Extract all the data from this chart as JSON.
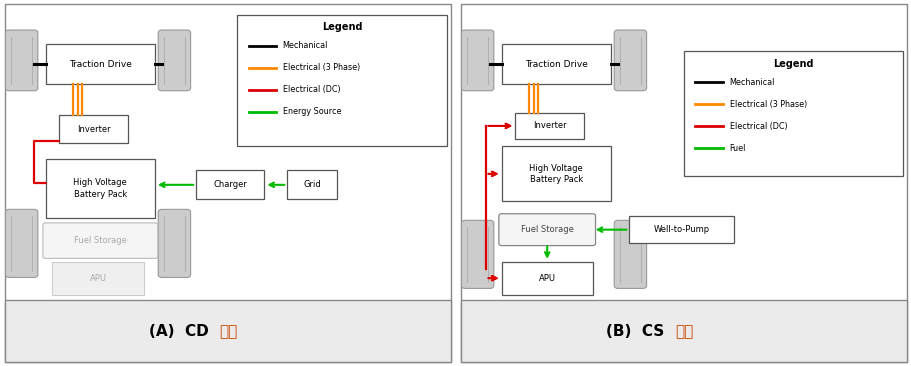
{
  "fig_width": 9.12,
  "fig_height": 3.66,
  "bg_color": "#ffffff",
  "legend_A_items": [
    {
      "label": "Mechanical",
      "color": "#000000",
      "lw": 2.0
    },
    {
      "label": "Electrical (3 Phase)",
      "color": "#ff8800",
      "lw": 2.0
    },
    {
      "label": "Electrical (DC)",
      "color": "#dd0000",
      "lw": 2.0
    },
    {
      "label": "Energy Source",
      "color": "#00bb00",
      "lw": 2.0
    }
  ],
  "legend_B_items": [
    {
      "label": "Mechanical",
      "color": "#000000",
      "lw": 2.0
    },
    {
      "label": "Electrical (3 Phase)",
      "color": "#ff8800",
      "lw": 2.0
    },
    {
      "label": "Electrical (DC)",
      "color": "#dd0000",
      "lw": 2.0
    },
    {
      "label": "Fuel",
      "color": "#00bb00",
      "lw": 2.0
    }
  ],
  "caption_A_latin": "(A)  CD  ",
  "caption_A_korean": "모드",
  "caption_B_latin": "(B)  CS  ",
  "caption_B_korean": "모드",
  "korean_color": "#cc4400",
  "latin_color": "#000000"
}
